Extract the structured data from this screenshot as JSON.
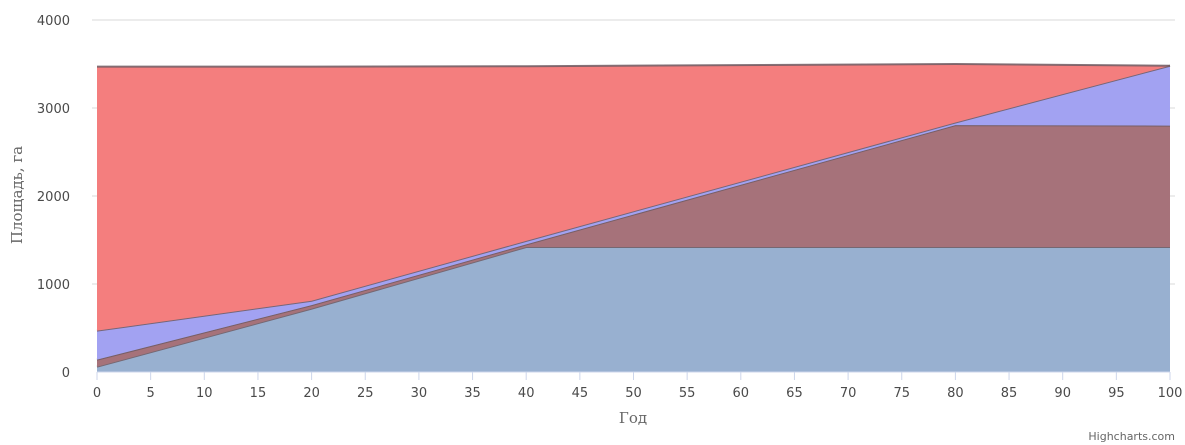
{
  "chart_data": {
    "type": "area",
    "stacking": "normal",
    "xlabel": "Год",
    "ylabel": "Площадь, га",
    "xlim": [
      0,
      100
    ],
    "ylim": [
      0,
      4000
    ],
    "x_ticks": [
      0,
      5,
      10,
      15,
      20,
      25,
      30,
      35,
      40,
      45,
      50,
      55,
      60,
      65,
      70,
      75,
      80,
      85,
      90,
      95,
      100
    ],
    "y_ticks": [
      0,
      1000,
      2000,
      3000,
      4000
    ],
    "grid": true,
    "x": [
      0,
      20,
      40,
      80,
      100
    ],
    "series": [
      {
        "color": "#f47e7e",
        "values": [
          3000,
          2660,
          1985,
          665,
          0
        ]
      },
      {
        "color": "#a2a2f2",
        "values": [
          330,
          50,
          40,
          30,
          680
        ]
      },
      {
        "color": "#a6727a",
        "values": [
          80,
          40,
          30,
          1385,
          1380
        ]
      },
      {
        "color": "#98b0d0",
        "values": [
          60,
          720,
          1420,
          1420,
          1420
        ]
      }
    ],
    "credits": "Highcharts.com"
  }
}
